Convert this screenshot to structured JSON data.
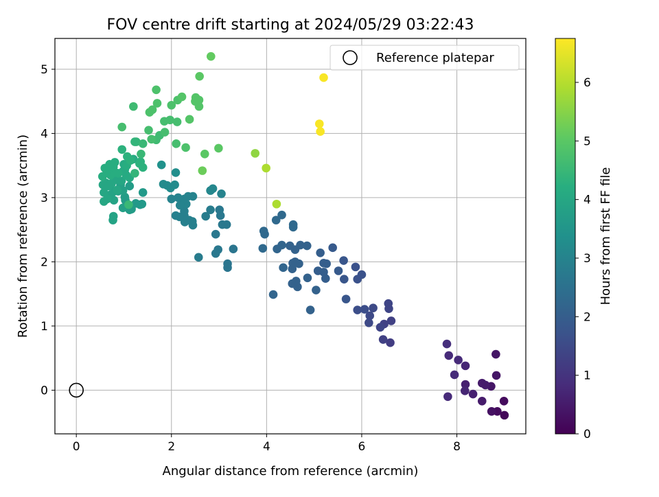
{
  "chart_data": {
    "type": "scatter",
    "title": "FOV centre drift starting at 2024/05/29 03:22:43",
    "xlabel": "Angular distance from reference (arcmin)",
    "ylabel": "Rotation from reference (arcmin)",
    "xlim": [
      -0.45,
      9.45
    ],
    "ylim": [
      -0.68,
      5.48
    ],
    "xticks": [
      0,
      2,
      4,
      6,
      8
    ],
    "yticks": [
      0,
      1,
      2,
      3,
      4,
      5
    ],
    "grid": true,
    "legend": {
      "placement": "top-right",
      "entries": [
        {
          "label": "Reference platepar",
          "marker": "open-circle"
        }
      ]
    },
    "reference_point": {
      "x": 0,
      "y": 0
    },
    "colorbar": {
      "label": "Hours from first FF file",
      "range": [
        0,
        6.75
      ],
      "ticks": [
        0,
        1,
        2,
        3,
        4,
        5,
        6
      ],
      "colormap": "viridis"
    },
    "points": [
      {
        "x": 8.82,
        "y": 0.56,
        "h": 0.4
      },
      {
        "x": 8.83,
        "y": 0.23,
        "h": 0.4
      },
      {
        "x": 8.99,
        "y": -0.17,
        "h": 0.2
      },
      {
        "x": 9.0,
        "y": -0.39,
        "h": 0.1
      },
      {
        "x": 8.85,
        "y": -0.33,
        "h": 0.2
      },
      {
        "x": 8.73,
        "y": -0.33,
        "h": 0.3
      },
      {
        "x": 8.72,
        "y": 0.06,
        "h": 0.4
      },
      {
        "x": 8.6,
        "y": 0.08,
        "h": 0.5
      },
      {
        "x": 8.53,
        "y": 0.11,
        "h": 0.5
      },
      {
        "x": 8.53,
        "y": -0.17,
        "h": 0.5
      },
      {
        "x": 8.34,
        "y": -0.06,
        "h": 0.6
      },
      {
        "x": 8.18,
        "y": 0.09,
        "h": 0.6
      },
      {
        "x": 8.17,
        "y": -0.01,
        "h": 0.7
      },
      {
        "x": 8.18,
        "y": 0.38,
        "h": 0.7
      },
      {
        "x": 8.03,
        "y": 0.47,
        "h": 0.8
      },
      {
        "x": 7.95,
        "y": 0.24,
        "h": 0.8
      },
      {
        "x": 7.83,
        "y": 0.54,
        "h": 0.8
      },
      {
        "x": 7.79,
        "y": 0.72,
        "h": 0.9
      },
      {
        "x": 7.81,
        "y": -0.1,
        "h": 0.8
      },
      {
        "x": 6.62,
        "y": 1.08,
        "h": 1.3
      },
      {
        "x": 6.6,
        "y": 0.74,
        "h": 1.2
      },
      {
        "x": 6.47,
        "y": 1.03,
        "h": 1.3
      },
      {
        "x": 6.45,
        "y": 0.79,
        "h": 1.3
      },
      {
        "x": 6.39,
        "y": 0.98,
        "h": 1.4
      },
      {
        "x": 6.57,
        "y": 1.27,
        "h": 1.4
      },
      {
        "x": 6.56,
        "y": 1.35,
        "h": 1.4
      },
      {
        "x": 6.24,
        "y": 1.28,
        "h": 1.5
      },
      {
        "x": 6.17,
        "y": 1.16,
        "h": 1.5
      },
      {
        "x": 6.15,
        "y": 1.05,
        "h": 1.5
      },
      {
        "x": 6.06,
        "y": 1.26,
        "h": 1.6
      },
      {
        "x": 5.91,
        "y": 1.25,
        "h": 1.6
      },
      {
        "x": 6.0,
        "y": 1.8,
        "h": 1.7
      },
      {
        "x": 5.91,
        "y": 1.73,
        "h": 1.7
      },
      {
        "x": 5.87,
        "y": 1.92,
        "h": 1.7
      },
      {
        "x": 5.67,
        "y": 1.42,
        "h": 1.8
      },
      {
        "x": 5.63,
        "y": 1.73,
        "h": 1.8
      },
      {
        "x": 5.62,
        "y": 2.02,
        "h": 1.8
      },
      {
        "x": 5.51,
        "y": 1.86,
        "h": 1.9
      },
      {
        "x": 5.39,
        "y": 2.22,
        "h": 1.9
      },
      {
        "x": 5.26,
        "y": 1.97,
        "h": 2.0
      },
      {
        "x": 5.24,
        "y": 1.74,
        "h": 2.0
      },
      {
        "x": 5.2,
        "y": 1.84,
        "h": 2.0
      },
      {
        "x": 5.2,
        "y": 1.98,
        "h": 2.0
      },
      {
        "x": 5.13,
        "y": 2.14,
        "h": 2.0
      },
      {
        "x": 5.08,
        "y": 1.86,
        "h": 2.0
      },
      {
        "x": 5.04,
        "y": 1.56,
        "h": 2.1
      },
      {
        "x": 4.92,
        "y": 1.25,
        "h": 2.1
      },
      {
        "x": 4.86,
        "y": 1.75,
        "h": 2.1
      },
      {
        "x": 4.85,
        "y": 2.25,
        "h": 2.1
      },
      {
        "x": 4.71,
        "y": 2.26,
        "h": 2.1
      },
      {
        "x": 4.68,
        "y": 1.97,
        "h": 2.1
      },
      {
        "x": 4.65,
        "y": 1.61,
        "h": 2.1
      },
      {
        "x": 4.62,
        "y": 1.7,
        "h": 2.1
      },
      {
        "x": 4.6,
        "y": 2.19,
        "h": 2.1
      },
      {
        "x": 4.6,
        "y": 2.0,
        "h": 2.1
      },
      {
        "x": 4.55,
        "y": 1.98,
        "h": 2.1
      },
      {
        "x": 4.54,
        "y": 1.89,
        "h": 2.1
      },
      {
        "x": 4.54,
        "y": 1.66,
        "h": 2.1
      },
      {
        "x": 4.49,
        "y": 2.25,
        "h": 2.1
      },
      {
        "x": 4.35,
        "y": 1.91,
        "h": 2.2
      },
      {
        "x": 4.32,
        "y": 2.26,
        "h": 2.2
      },
      {
        "x": 4.22,
        "y": 2.2,
        "h": 2.2
      },
      {
        "x": 4.14,
        "y": 1.49,
        "h": 2.2
      },
      {
        "x": 3.96,
        "y": 2.43,
        "h": 2.3
      },
      {
        "x": 3.94,
        "y": 2.48,
        "h": 2.3
      },
      {
        "x": 3.92,
        "y": 2.21,
        "h": 2.3
      },
      {
        "x": 4.2,
        "y": 2.65,
        "h": 2.3
      },
      {
        "x": 4.32,
        "y": 2.73,
        "h": 2.3
      },
      {
        "x": 4.56,
        "y": 2.58,
        "h": 2.3
      },
      {
        "x": 4.56,
        "y": 2.54,
        "h": 2.3
      },
      {
        "x": 3.3,
        "y": 2.2,
        "h": 2.6
      },
      {
        "x": 3.18,
        "y": 1.91,
        "h": 2.6
      },
      {
        "x": 3.18,
        "y": 1.97,
        "h": 2.6
      },
      {
        "x": 2.98,
        "y": 2.19,
        "h": 2.7
      },
      {
        "x": 2.93,
        "y": 2.13,
        "h": 2.7
      },
      {
        "x": 2.93,
        "y": 2.43,
        "h": 2.7
      },
      {
        "x": 2.57,
        "y": 2.07,
        "h": 2.8
      },
      {
        "x": 3.16,
        "y": 2.58,
        "h": 2.7
      },
      {
        "x": 3.07,
        "y": 2.58,
        "h": 2.7
      },
      {
        "x": 3.03,
        "y": 2.72,
        "h": 2.7
      },
      {
        "x": 3.01,
        "y": 2.81,
        "h": 2.7
      },
      {
        "x": 2.82,
        "y": 2.81,
        "h": 2.8
      },
      {
        "x": 2.72,
        "y": 2.71,
        "h": 2.8
      },
      {
        "x": 2.45,
        "y": 2.57,
        "h": 2.9
      },
      {
        "x": 2.44,
        "y": 2.63,
        "h": 2.9
      },
      {
        "x": 2.37,
        "y": 2.65,
        "h": 2.9
      },
      {
        "x": 2.28,
        "y": 2.62,
        "h": 2.9
      },
      {
        "x": 2.27,
        "y": 2.72,
        "h": 2.9
      },
      {
        "x": 2.27,
        "y": 2.79,
        "h": 2.9
      },
      {
        "x": 2.17,
        "y": 2.7,
        "h": 2.9
      },
      {
        "x": 2.09,
        "y": 2.72,
        "h": 2.9
      },
      {
        "x": 2.31,
        "y": 2.9,
        "h": 3.0
      },
      {
        "x": 2.27,
        "y": 2.98,
        "h": 3.0
      },
      {
        "x": 2.35,
        "y": 3.02,
        "h": 3.0
      },
      {
        "x": 2.45,
        "y": 3.02,
        "h": 3.0
      },
      {
        "x": 2.18,
        "y": 2.88,
        "h": 3.0
      },
      {
        "x": 2.14,
        "y": 3.0,
        "h": 3.0
      },
      {
        "x": 2.0,
        "y": 2.98,
        "h": 3.0
      },
      {
        "x": 3.05,
        "y": 3.06,
        "h": 3.0
      },
      {
        "x": 2.87,
        "y": 3.14,
        "h": 3.1
      },
      {
        "x": 2.82,
        "y": 3.11,
        "h": 3.1
      },
      {
        "x": 1.98,
        "y": 3.15,
        "h": 3.2
      },
      {
        "x": 1.91,
        "y": 3.19,
        "h": 3.2
      },
      {
        "x": 1.83,
        "y": 3.21,
        "h": 3.2
      },
      {
        "x": 2.07,
        "y": 3.2,
        "h": 3.2
      },
      {
        "x": 2.09,
        "y": 3.39,
        "h": 3.3
      },
      {
        "x": 1.79,
        "y": 3.51,
        "h": 3.4
      },
      {
        "x": 1.4,
        "y": 3.08,
        "h": 3.6
      },
      {
        "x": 1.38,
        "y": 2.9,
        "h": 3.6
      },
      {
        "x": 1.34,
        "y": 2.89,
        "h": 3.6
      },
      {
        "x": 1.25,
        "y": 2.91,
        "h": 3.6
      },
      {
        "x": 1.16,
        "y": 2.82,
        "h": 3.7
      },
      {
        "x": 1.12,
        "y": 3.18,
        "h": 3.7
      },
      {
        "x": 1.12,
        "y": 2.81,
        "h": 3.7
      },
      {
        "x": 1.03,
        "y": 2.96,
        "h": 3.7
      },
      {
        "x": 1.02,
        "y": 3.01,
        "h": 3.7
      },
      {
        "x": 0.98,
        "y": 2.84,
        "h": 3.8
      },
      {
        "x": 0.98,
        "y": 3.11,
        "h": 3.8
      },
      {
        "x": 0.93,
        "y": 3.2,
        "h": 3.8
      },
      {
        "x": 0.88,
        "y": 3.1,
        "h": 3.8
      },
      {
        "x": 0.8,
        "y": 3.1,
        "h": 3.9
      },
      {
        "x": 0.79,
        "y": 2.96,
        "h": 3.9
      },
      {
        "x": 0.77,
        "y": 2.65,
        "h": 3.9
      },
      {
        "x": 0.78,
        "y": 2.71,
        "h": 3.9
      },
      {
        "x": 0.73,
        "y": 3.05,
        "h": 3.9
      },
      {
        "x": 0.65,
        "y": 2.98,
        "h": 4.0
      },
      {
        "x": 0.58,
        "y": 2.94,
        "h": 4.0
      },
      {
        "x": 0.58,
        "y": 3.08,
        "h": 4.0
      },
      {
        "x": 0.56,
        "y": 3.2,
        "h": 4.0
      },
      {
        "x": 0.62,
        "y": 3.23,
        "h": 4.0
      },
      {
        "x": 0.68,
        "y": 3.18,
        "h": 4.0
      },
      {
        "x": 0.74,
        "y": 3.22,
        "h": 4.0
      },
      {
        "x": 0.84,
        "y": 3.28,
        "h": 4.0
      },
      {
        "x": 0.86,
        "y": 3.12,
        "h": 4.0
      },
      {
        "x": 0.95,
        "y": 3.26,
        "h": 4.0
      },
      {
        "x": 1.02,
        "y": 3.44,
        "h": 4.1
      },
      {
        "x": 1.05,
        "y": 3.35,
        "h": 4.1
      },
      {
        "x": 1.12,
        "y": 3.31,
        "h": 4.1
      },
      {
        "x": 1.2,
        "y": 3.6,
        "h": 4.1
      },
      {
        "x": 1.0,
        "y": 3.52,
        "h": 4.1
      },
      {
        "x": 0.98,
        "y": 3.41,
        "h": 4.1
      },
      {
        "x": 0.88,
        "y": 3.38,
        "h": 4.2
      },
      {
        "x": 0.82,
        "y": 3.39,
        "h": 4.2
      },
      {
        "x": 0.77,
        "y": 3.43,
        "h": 4.2
      },
      {
        "x": 0.72,
        "y": 3.35,
        "h": 4.2
      },
      {
        "x": 0.64,
        "y": 3.39,
        "h": 4.2
      },
      {
        "x": 0.55,
        "y": 3.33,
        "h": 4.2
      },
      {
        "x": 0.6,
        "y": 3.46,
        "h": 4.2
      },
      {
        "x": 0.7,
        "y": 3.52,
        "h": 4.2
      },
      {
        "x": 0.78,
        "y": 3.48,
        "h": 4.2
      },
      {
        "x": 0.81,
        "y": 3.55,
        "h": 4.2
      },
      {
        "x": 1.06,
        "y": 3.5,
        "h": 4.2
      },
      {
        "x": 1.14,
        "y": 3.58,
        "h": 4.3
      },
      {
        "x": 1.33,
        "y": 3.53,
        "h": 4.3
      },
      {
        "x": 1.4,
        "y": 3.47,
        "h": 4.3
      },
      {
        "x": 1.35,
        "y": 3.56,
        "h": 4.3
      },
      {
        "x": 0.96,
        "y": 3.75,
        "h": 4.3
      },
      {
        "x": 1.07,
        "y": 3.64,
        "h": 4.3
      },
      {
        "x": 1.23,
        "y": 3.87,
        "h": 4.4
      },
      {
        "x": 1.26,
        "y": 3.87,
        "h": 4.4
      },
      {
        "x": 1.23,
        "y": 3.38,
        "h": 4.4
      },
      {
        "x": 1.1,
        "y": 2.89,
        "h": 4.5
      },
      {
        "x": 1.36,
        "y": 3.68,
        "h": 4.5
      },
      {
        "x": 1.4,
        "y": 3.84,
        "h": 4.5
      },
      {
        "x": 1.2,
        "y": 4.42,
        "h": 4.6
      },
      {
        "x": 1.68,
        "y": 3.9,
        "h": 4.6
      },
      {
        "x": 1.75,
        "y": 3.97,
        "h": 4.6
      },
      {
        "x": 1.58,
        "y": 3.91,
        "h": 4.7
      },
      {
        "x": 1.52,
        "y": 4.05,
        "h": 4.7
      },
      {
        "x": 0.96,
        "y": 4.1,
        "h": 4.7
      },
      {
        "x": 1.86,
        "y": 4.02,
        "h": 4.7
      },
      {
        "x": 1.85,
        "y": 4.19,
        "h": 4.7
      },
      {
        "x": 1.97,
        "y": 4.21,
        "h": 4.7
      },
      {
        "x": 2.12,
        "y": 4.18,
        "h": 4.7
      },
      {
        "x": 2.1,
        "y": 3.84,
        "h": 4.7
      },
      {
        "x": 2.3,
        "y": 3.78,
        "h": 4.8
      },
      {
        "x": 1.54,
        "y": 4.33,
        "h": 4.8
      },
      {
        "x": 1.6,
        "y": 4.37,
        "h": 4.8
      },
      {
        "x": 1.7,
        "y": 4.47,
        "h": 4.8
      },
      {
        "x": 1.68,
        "y": 4.68,
        "h": 4.8
      },
      {
        "x": 2.0,
        "y": 4.44,
        "h": 4.8
      },
      {
        "x": 2.13,
        "y": 4.52,
        "h": 4.8
      },
      {
        "x": 2.22,
        "y": 4.57,
        "h": 4.9
      },
      {
        "x": 2.51,
        "y": 4.56,
        "h": 4.9
      },
      {
        "x": 2.5,
        "y": 4.5,
        "h": 4.9
      },
      {
        "x": 2.58,
        "y": 4.42,
        "h": 4.9
      },
      {
        "x": 2.58,
        "y": 4.52,
        "h": 4.9
      },
      {
        "x": 2.38,
        "y": 4.22,
        "h": 4.9
      },
      {
        "x": 2.7,
        "y": 3.68,
        "h": 5.0
      },
      {
        "x": 2.99,
        "y": 3.77,
        "h": 5.0
      },
      {
        "x": 2.59,
        "y": 4.89,
        "h": 5.0
      },
      {
        "x": 2.83,
        "y": 5.2,
        "h": 5.1
      },
      {
        "x": 2.65,
        "y": 3.42,
        "h": 5.2
      },
      {
        "x": 3.76,
        "y": 3.69,
        "h": 5.6
      },
      {
        "x": 3.99,
        "y": 3.46,
        "h": 5.9
      },
      {
        "x": 4.21,
        "y": 2.9,
        "h": 5.9
      },
      {
        "x": 5.11,
        "y": 4.15,
        "h": 6.7
      },
      {
        "x": 5.13,
        "y": 4.03,
        "h": 6.7
      },
      {
        "x": 5.2,
        "y": 4.87,
        "h": 6.7
      }
    ]
  }
}
